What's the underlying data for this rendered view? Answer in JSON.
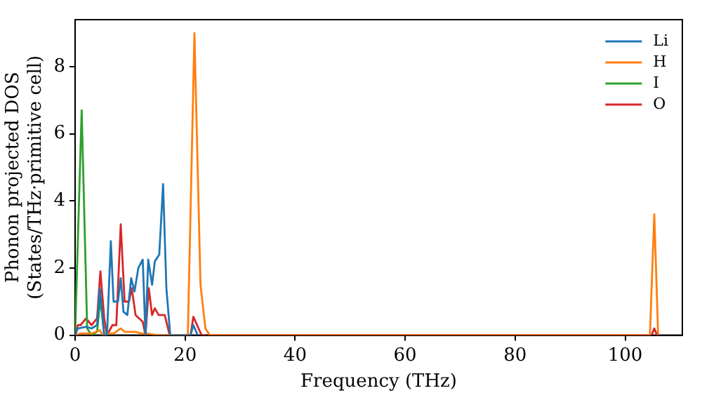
{
  "chart_data": {
    "type": "line",
    "xlabel": "Frequency (THz)",
    "ylabel": "Phonon projected DOS\n(States/THz·primitive cell)",
    "xlim": [
      0,
      110.4
    ],
    "ylim": [
      0,
      9.4
    ],
    "xticks": [
      0,
      20,
      40,
      60,
      80,
      100
    ],
    "yticks": [
      0,
      2,
      4,
      6,
      8
    ],
    "grid": false,
    "legend": "top right",
    "marker": "none",
    "line_style": "solid",
    "series": [
      {
        "name": "Li",
        "color": "#1f77b4",
        "x": [
          0,
          0.5,
          2,
          3,
          4,
          4.5,
          5.3,
          5.8,
          6.5,
          7,
          7.8,
          8.3,
          8.8,
          9.5,
          10.2,
          10.8,
          11.5,
          12.3,
          12.8,
          13.3,
          14,
          14.5,
          15.3,
          16,
          16.6,
          17.3,
          21,
          21.5,
          22.3
        ],
        "values": [
          0,
          0.2,
          0.25,
          0.2,
          0.3,
          1.4,
          0,
          0,
          2.8,
          1.0,
          1.0,
          1.7,
          0.7,
          0.6,
          1.7,
          1.3,
          2.0,
          2.25,
          0,
          2.25,
          1.5,
          2.2,
          2.4,
          4.5,
          1.4,
          0,
          0,
          0.3,
          0
        ]
      },
      {
        "name": "H",
        "color": "#ff7f0e",
        "x": [
          0,
          1,
          3,
          4.5,
          5,
          6,
          7,
          8.3,
          9,
          10,
          11,
          12,
          13,
          15,
          20.5,
          21.7,
          22.8,
          23.7,
          24.5,
          104.5,
          105.3,
          106
        ],
        "values": [
          0,
          0.05,
          0.05,
          0.15,
          0,
          0.05,
          0.05,
          0.2,
          0.1,
          0.1,
          0.1,
          0.05,
          0.05,
          0,
          0,
          9.0,
          1.5,
          0.2,
          0,
          0,
          3.6,
          0
        ]
      },
      {
        "name": "I",
        "color": "#2ca02c",
        "x": [
          0,
          1.2,
          2.2,
          3,
          4,
          4.6,
          5.3,
          6
        ],
        "values": [
          0,
          6.7,
          0.2,
          0,
          0.1,
          1.1,
          0,
          0
        ]
      },
      {
        "name": "O",
        "color": "#d62728",
        "x": [
          0,
          0.5,
          1,
          2,
          3,
          4,
          4.6,
          5.3,
          5.8,
          6.8,
          7.5,
          8.3,
          9,
          9.8,
          10.3,
          11,
          12.3,
          12.8,
          13.4,
          14,
          14.5,
          15.2,
          16.3,
          17.2,
          21,
          21.5,
          23,
          104.8,
          105.3,
          105.8
        ],
        "values": [
          0,
          0.3,
          0.3,
          0.5,
          0.3,
          0.5,
          1.9,
          0.5,
          0,
          0.3,
          0.3,
          3.3,
          1.0,
          1.0,
          1.4,
          0.6,
          0.4,
          0,
          1.4,
          0.6,
          0.8,
          0.6,
          0.6,
          0,
          0,
          0.55,
          0,
          0,
          0.2,
          0
        ]
      }
    ]
  }
}
